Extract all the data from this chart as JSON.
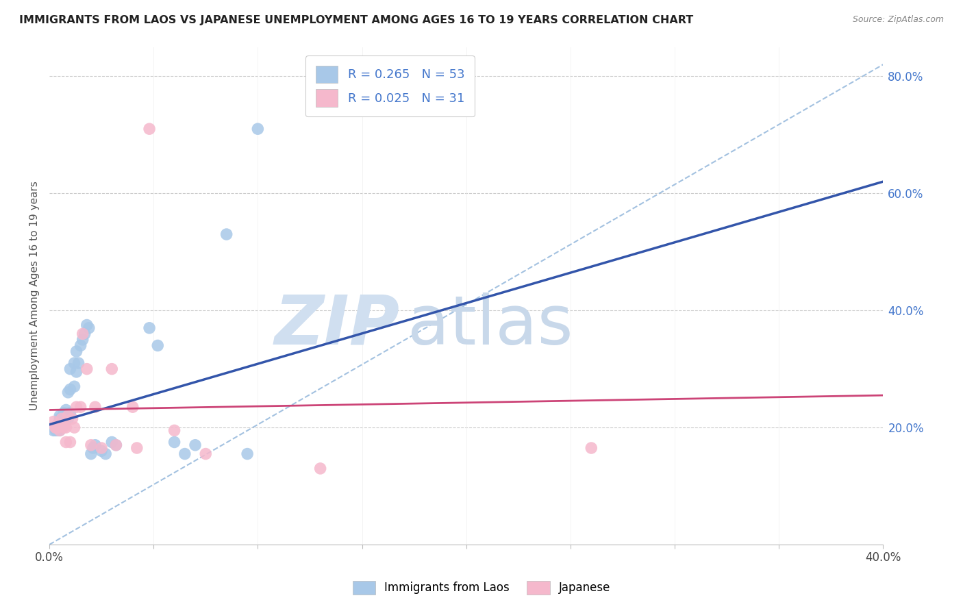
{
  "title": "IMMIGRANTS FROM LAOS VS JAPANESE UNEMPLOYMENT AMONG AGES 16 TO 19 YEARS CORRELATION CHART",
  "source": "Source: ZipAtlas.com",
  "ylabel": "Unemployment Among Ages 16 to 19 years",
  "xlim": [
    0.0,
    0.4
  ],
  "ylim": [
    0.0,
    0.85
  ],
  "legend_r1": "R = 0.265",
  "legend_n1": "N = 53",
  "legend_r2": "R = 0.025",
  "legend_n2": "N = 31",
  "color_blue": "#a8c8e8",
  "color_pink": "#f5b8cc",
  "line_color_blue": "#3355aa",
  "line_color_pink": "#cc4477",
  "dashed_line_color": "#99bbdd",
  "watermark_zip": "ZIP",
  "watermark_atlas": "atlas",
  "blue_line_x0": 0.0,
  "blue_line_y0": 0.205,
  "blue_line_x1": 0.4,
  "blue_line_y1": 0.62,
  "pink_line_x0": 0.0,
  "pink_line_y0": 0.23,
  "pink_line_x1": 0.4,
  "pink_line_y1": 0.255,
  "blue_scatter_x": [
    0.002,
    0.003,
    0.003,
    0.004,
    0.004,
    0.004,
    0.004,
    0.004,
    0.005,
    0.005,
    0.005,
    0.005,
    0.005,
    0.005,
    0.005,
    0.006,
    0.006,
    0.007,
    0.007,
    0.007,
    0.008,
    0.008,
    0.008,
    0.009,
    0.009,
    0.01,
    0.01,
    0.01,
    0.012,
    0.012,
    0.013,
    0.013,
    0.014,
    0.015,
    0.016,
    0.017,
    0.018,
    0.019,
    0.02,
    0.021,
    0.022,
    0.025,
    0.027,
    0.03,
    0.032,
    0.048,
    0.052,
    0.06,
    0.065,
    0.07,
    0.085,
    0.095,
    0.1
  ],
  "blue_scatter_y": [
    0.195,
    0.2,
    0.195,
    0.2,
    0.2,
    0.195,
    0.2,
    0.205,
    0.195,
    0.2,
    0.2,
    0.205,
    0.21,
    0.215,
    0.22,
    0.2,
    0.215,
    0.21,
    0.215,
    0.225,
    0.215,
    0.22,
    0.23,
    0.215,
    0.26,
    0.225,
    0.265,
    0.3,
    0.27,
    0.31,
    0.295,
    0.33,
    0.31,
    0.34,
    0.35,
    0.36,
    0.375,
    0.37,
    0.155,
    0.165,
    0.17,
    0.16,
    0.155,
    0.175,
    0.17,
    0.37,
    0.34,
    0.175,
    0.155,
    0.17,
    0.53,
    0.155,
    0.71
  ],
  "pink_scatter_x": [
    0.002,
    0.003,
    0.003,
    0.004,
    0.004,
    0.005,
    0.006,
    0.007,
    0.007,
    0.008,
    0.008,
    0.009,
    0.01,
    0.011,
    0.012,
    0.013,
    0.015,
    0.016,
    0.018,
    0.02,
    0.022,
    0.025,
    0.03,
    0.032,
    0.04,
    0.042,
    0.048,
    0.06,
    0.075,
    0.13,
    0.26
  ],
  "pink_scatter_y": [
    0.21,
    0.2,
    0.2,
    0.2,
    0.205,
    0.195,
    0.215,
    0.205,
    0.2,
    0.2,
    0.175,
    0.22,
    0.175,
    0.215,
    0.2,
    0.235,
    0.235,
    0.36,
    0.3,
    0.17,
    0.235,
    0.165,
    0.3,
    0.17,
    0.235,
    0.165,
    0.71,
    0.195,
    0.155,
    0.13,
    0.165
  ]
}
